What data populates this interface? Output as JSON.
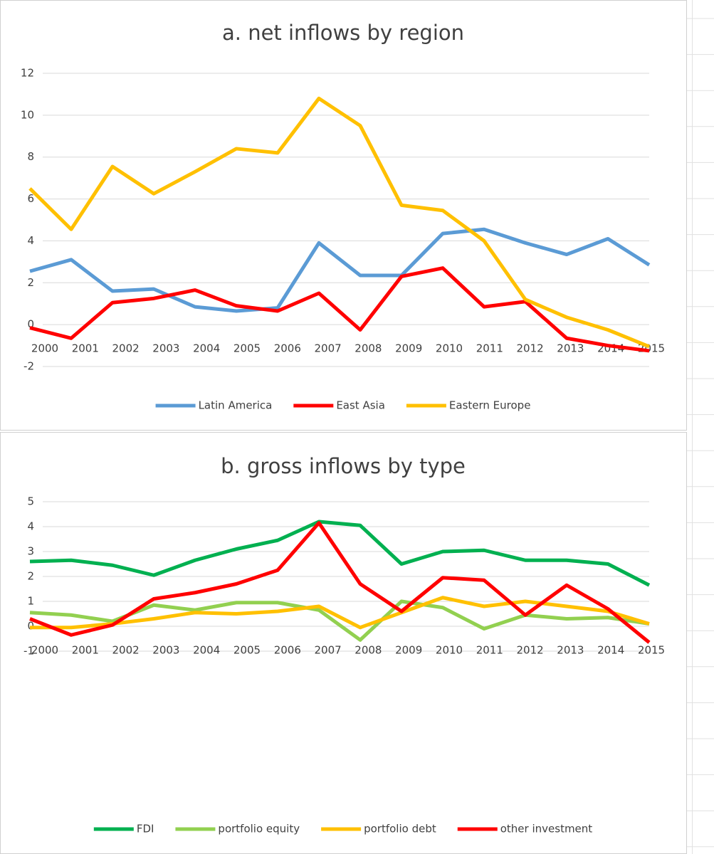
{
  "chart_data": [
    {
      "type": "line",
      "title": "a. net inflows by region",
      "categories": [
        "2000",
        "2001",
        "2002",
        "2003",
        "2004",
        "2005",
        "2006",
        "2007",
        "2008",
        "2009",
        "2010",
        "2011",
        "2012",
        "2013",
        "2014",
        "2015"
      ],
      "series": [
        {
          "name": "Latin America",
          "color": "#5b9bd5",
          "values": [
            2.55,
            3.1,
            1.6,
            1.7,
            0.85,
            0.65,
            0.8,
            3.9,
            2.35,
            2.35,
            4.35,
            4.55,
            3.9,
            3.35,
            4.1,
            2.85
          ]
        },
        {
          "name": "East Asia",
          "color": "#ff0000",
          "values": [
            -0.15,
            -0.65,
            1.05,
            1.25,
            1.65,
            0.9,
            0.65,
            1.5,
            -0.25,
            2.3,
            2.7,
            0.85,
            1.1,
            -0.65,
            -1.0,
            -1.25
          ]
        },
        {
          "name": "Eastern Europe",
          "color": "#ffc000",
          "values": [
            6.5,
            4.55,
            7.55,
            6.25,
            7.3,
            8.4,
            8.2,
            10.8,
            9.5,
            5.7,
            5.45,
            4.0,
            1.2,
            0.35,
            -0.25,
            -1.05
          ]
        }
      ],
      "ylim": [
        -2,
        12
      ],
      "yticks": [
        -2,
        0,
        2,
        4,
        6,
        8,
        10,
        12
      ],
      "grid": true,
      "legend": "bottom"
    },
    {
      "type": "line",
      "title": "b. gross inflows by type",
      "categories": [
        "2000",
        "2001",
        "2002",
        "2003",
        "2004",
        "2005",
        "2006",
        "2007",
        "2008",
        "2009",
        "2010",
        "2011",
        "2012",
        "2013",
        "2014",
        "2015"
      ],
      "series": [
        {
          "name": "FDI",
          "color": "#00b050",
          "values": [
            2.6,
            2.65,
            2.45,
            2.05,
            2.65,
            3.1,
            3.45,
            4.2,
            4.05,
            2.5,
            3.0,
            3.05,
            2.65,
            2.65,
            2.5,
            1.65
          ]
        },
        {
          "name": "portfolio equity",
          "color": "#92d050",
          "values": [
            0.55,
            0.45,
            0.2,
            0.85,
            0.65,
            0.95,
            0.95,
            0.65,
            -0.55,
            1.0,
            0.75,
            -0.1,
            0.45,
            0.3,
            0.35,
            0.1
          ]
        },
        {
          "name": "portfolio debt",
          "color": "#ffc000",
          "values": [
            -0.05,
            -0.05,
            0.1,
            0.3,
            0.55,
            0.5,
            0.6,
            0.8,
            -0.05,
            0.55,
            1.15,
            0.8,
            1.0,
            0.8,
            0.6,
            0.1
          ]
        },
        {
          "name": "other investment",
          "color": "#ff0000",
          "values": [
            0.3,
            -0.35,
            0.05,
            1.1,
            1.35,
            1.7,
            2.25,
            4.15,
            1.7,
            0.6,
            1.95,
            1.85,
            0.45,
            1.65,
            0.7,
            -0.65
          ]
        }
      ],
      "ylim": [
        -1,
        5
      ],
      "yticks": [
        -1,
        0,
        1,
        2,
        3,
        4,
        5
      ],
      "grid": true,
      "legend": "bottom"
    }
  ]
}
